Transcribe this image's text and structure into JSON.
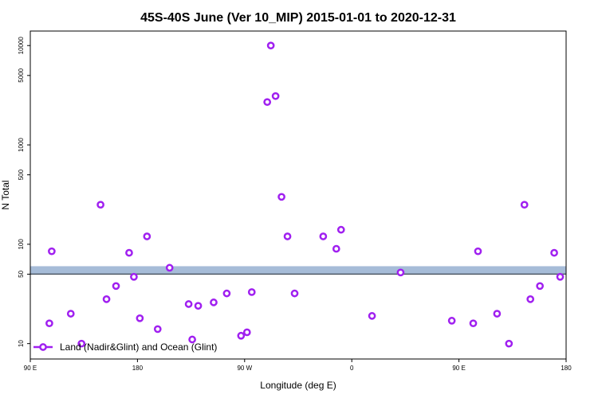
{
  "chart_data": {
    "type": "scatter",
    "title": "45S-40S June (Ver 10_MIP)   2015-01-01 to 2020-12-31",
    "xlabel": "Longitude (deg E)",
    "ylabel": "N Total",
    "x_ticks": [
      {
        "value": 90,
        "label": "90 E"
      },
      {
        "value": 180,
        "label": "180"
      },
      {
        "value": 270,
        "label": "90 W"
      },
      {
        "value": 360,
        "label": "0"
      },
      {
        "value": 450,
        "label": "90 E"
      },
      {
        "value": 540,
        "label": "180"
      }
    ],
    "xlim": [
      90,
      540
    ],
    "y_scale": "log",
    "ylim": [
      7,
      14000
    ],
    "y_ticks": [
      10,
      50,
      100,
      500,
      1000,
      5000,
      10000
    ],
    "threshold": 50,
    "legend": {
      "label": "Land (Nadir&Glint) and Ocean (Glint)",
      "position": "bottom-left"
    },
    "series": [
      {
        "name": "Land (Nadir&Glint) and Ocean (Glint)",
        "color": "#a020f0",
        "points": [
          [
            106,
            16
          ],
          [
            108,
            85
          ],
          [
            124,
            20
          ],
          [
            133,
            10
          ],
          [
            149,
            250
          ],
          [
            154,
            28
          ],
          [
            162,
            38
          ],
          [
            173,
            82
          ],
          [
            177,
            47
          ],
          [
            182,
            18
          ],
          [
            188,
            120
          ],
          [
            197,
            14
          ],
          [
            207,
            58
          ],
          [
            223,
            25
          ],
          [
            226,
            11
          ],
          [
            231,
            24
          ],
          [
            244,
            26
          ],
          [
            255,
            32
          ],
          [
            267,
            12
          ],
          [
            272,
            13
          ],
          [
            276,
            33
          ],
          [
            289,
            2700
          ],
          [
            292,
            10000
          ],
          [
            296,
            3100
          ],
          [
            301,
            300
          ],
          [
            306,
            120
          ],
          [
            312,
            32
          ],
          [
            336,
            120
          ],
          [
            347,
            90
          ],
          [
            351,
            140
          ],
          [
            377,
            19
          ],
          [
            401,
            52
          ],
          [
            444,
            17
          ],
          [
            462,
            16
          ],
          [
            466,
            85
          ],
          [
            482,
            20
          ],
          [
            492,
            10
          ],
          [
            505,
            250
          ],
          [
            510,
            28
          ],
          [
            518,
            38
          ],
          [
            530,
            82
          ],
          [
            535,
            47
          ]
        ]
      }
    ]
  }
}
